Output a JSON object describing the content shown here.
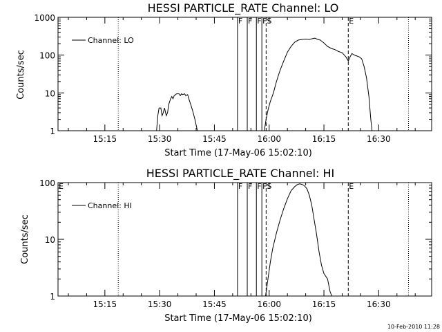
{
  "footer_timestamp": "10-Feb-2010 11:28",
  "chart_data": [
    {
      "type": "line",
      "title": "HESSI PARTICLE_RATE Channel: LO",
      "xlabel": "Start Time (17-May-06 15:02:10)",
      "ylabel": "Counts/sec",
      "y_scale": "log",
      "ylim": [
        1,
        1000
      ],
      "xlim": [
        "15:02:10",
        "16:44:30"
      ],
      "y_ticks": [
        "1",
        "10",
        "100",
        "1000"
      ],
      "x_ticks": [
        "15:15",
        "15:30",
        "15:45",
        "16:00",
        "16:15",
        "16:30"
      ],
      "legend": {
        "label": "Channel: LO",
        "position": "top-left"
      },
      "markers": [
        {
          "label": "F",
          "time": "15:51:20",
          "style": "solid"
        },
        {
          "label": "F",
          "time": "15:54:00",
          "style": "solid"
        },
        {
          "label": "F",
          "time": "15:56:30",
          "style": "solid"
        },
        {
          "label": "F",
          "time": "15:58:00",
          "style": "solid"
        },
        {
          "label": "S",
          "time": "15:59:10",
          "style": "dashed"
        },
        {
          "label": "E",
          "time": "16:21:40",
          "style": "dashed"
        }
      ],
      "night_lines": [
        "15:18:40",
        "16:38:10"
      ],
      "series": [
        {
          "points": [
            [
              "15:29:10",
              1
            ],
            [
              "15:29:30",
              2.5
            ],
            [
              "15:29:50",
              4
            ],
            [
              "15:30:20",
              4
            ],
            [
              "15:30:40",
              2.5
            ],
            [
              "15:31:00",
              3
            ],
            [
              "15:31:20",
              4
            ],
            [
              "15:31:50",
              2.5
            ],
            [
              "15:32:10",
              3
            ],
            [
              "15:32:30",
              5
            ],
            [
              "15:33:00",
              7
            ],
            [
              "15:33:20",
              8
            ],
            [
              "15:33:40",
              7
            ],
            [
              "15:34:00",
              8.5
            ],
            [
              "15:34:40",
              9.5
            ],
            [
              "15:35:20",
              9.5
            ],
            [
              "15:35:40",
              8.5
            ],
            [
              "15:36:00",
              9.5
            ],
            [
              "15:36:20",
              9
            ],
            [
              "15:36:50",
              9.5
            ],
            [
              "15:37:10",
              8.5
            ],
            [
              "15:37:40",
              9
            ],
            [
              "15:38:00",
              7
            ],
            [
              "15:38:30",
              5
            ],
            [
              "15:39:00",
              3.5
            ],
            [
              "15:39:40",
              2
            ],
            [
              "15:40:20",
              1
            ]
          ]
        },
        {
          "points": [
            [
              "15:58:40",
              1
            ],
            [
              "15:59:10",
              2
            ],
            [
              "15:59:40",
              3.5
            ],
            [
              "16:00:20",
              6
            ],
            [
              "16:01:10",
              10
            ],
            [
              "16:02:00",
              20
            ],
            [
              "16:03:00",
              40
            ],
            [
              "16:04:00",
              70
            ],
            [
              "16:05:00",
              120
            ],
            [
              "16:06:00",
              170
            ],
            [
              "16:07:00",
              220
            ],
            [
              "16:08:00",
              250
            ],
            [
              "16:09:00",
              260
            ],
            [
              "16:10:00",
              265
            ],
            [
              "16:11:00",
              260
            ],
            [
              "16:11:40",
              270
            ],
            [
              "16:12:30",
              280
            ],
            [
              "16:13:20",
              260
            ],
            [
              "16:14:00",
              250
            ],
            [
              "16:15:00",
              210
            ],
            [
              "16:16:00",
              170
            ],
            [
              "16:17:00",
              150
            ],
            [
              "16:18:00",
              140
            ],
            [
              "16:19:00",
              125
            ],
            [
              "16:20:00",
              115
            ],
            [
              "16:21:00",
              90
            ],
            [
              "16:21:40",
              70
            ],
            [
              "16:22:10",
              90
            ],
            [
              "16:22:40",
              110
            ],
            [
              "16:23:20",
              100
            ],
            [
              "16:24:00",
              95
            ],
            [
              "16:24:40",
              90
            ],
            [
              "16:25:20",
              80
            ],
            [
              "16:26:00",
              50
            ],
            [
              "16:26:40",
              25
            ],
            [
              "16:27:20",
              8
            ],
            [
              "16:27:50",
              2
            ],
            [
              "16:28:10",
              1
            ]
          ]
        }
      ]
    },
    {
      "type": "line",
      "title": "HESSI PARTICLE_RATE Channel: HI",
      "xlabel": "Start Time (17-May-06 15:02:10)",
      "ylabel": "Counts/sec",
      "y_scale": "log",
      "ylim": [
        1,
        100
      ],
      "xlim": [
        "15:02:10",
        "16:44:30"
      ],
      "y_ticks": [
        "1",
        "10",
        "100"
      ],
      "x_ticks": [
        "15:15",
        "15:30",
        "15:45",
        "16:00",
        "16:15",
        "16:30"
      ],
      "legend": {
        "label": "Channel: HI",
        "position": "top-left"
      },
      "markers": [
        {
          "label": "E",
          "time": "15:02:10",
          "style": "none"
        },
        {
          "label": "F",
          "time": "15:51:20",
          "style": "solid"
        },
        {
          "label": "F",
          "time": "15:54:00",
          "style": "solid"
        },
        {
          "label": "F",
          "time": "15:56:30",
          "style": "solid"
        },
        {
          "label": "F",
          "time": "15:58:00",
          "style": "solid"
        },
        {
          "label": "S",
          "time": "15:59:10",
          "style": "dashed"
        },
        {
          "label": "E",
          "time": "16:21:40",
          "style": "dashed"
        }
      ],
      "night_lines": [
        "15:18:40",
        "16:38:10"
      ],
      "series": [
        {
          "points": [
            [
              "15:59:00",
              1
            ],
            [
              "15:59:40",
              2
            ],
            [
              "16:00:20",
              4
            ],
            [
              "16:01:00",
              7
            ],
            [
              "16:02:00",
              13
            ],
            [
              "16:03:00",
              22
            ],
            [
              "16:04:00",
              35
            ],
            [
              "16:05:00",
              52
            ],
            [
              "16:06:00",
              72
            ],
            [
              "16:07:00",
              85
            ],
            [
              "16:07:40",
              92
            ],
            [
              "16:08:20",
              95
            ],
            [
              "16:09:00",
              93
            ],
            [
              "16:09:40",
              88
            ],
            [
              "16:10:20",
              78
            ],
            [
              "16:11:00",
              60
            ],
            [
              "16:11:40",
              40
            ],
            [
              "16:12:20",
              22
            ],
            [
              "16:13:00",
              12
            ],
            [
              "16:13:40",
              6
            ],
            [
              "16:14:20",
              3.5
            ],
            [
              "16:15:00",
              2.5
            ],
            [
              "16:16:00",
              2
            ],
            [
              "16:16:40",
              1.2
            ],
            [
              "16:17:10",
              1
            ]
          ]
        }
      ]
    }
  ]
}
